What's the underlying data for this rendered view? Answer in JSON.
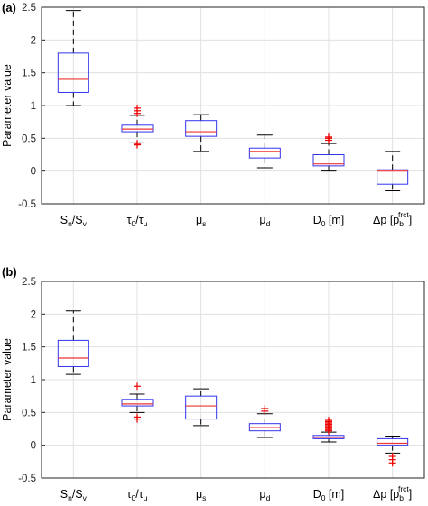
{
  "colors": {
    "box": "#3333ee",
    "median": "#ee3333",
    "whisker": "#000000",
    "outlier": "#ee0000",
    "grid": "#e0e0e0",
    "axis": "#262626"
  },
  "chart_data": [
    {
      "type": "boxplot",
      "panel_label": "(a)",
      "ylabel": "Parameter value",
      "ylim": [
        -0.5,
        2.5
      ],
      "yticks": [
        "-0.5",
        "0",
        "0.5",
        "1",
        "1.5",
        "2",
        "2.5"
      ],
      "grid": true,
      "categories": [
        {
          "main": "S",
          "sub": "n",
          "main2": "/S",
          "sub2": "v",
          "rest": ""
        },
        {
          "main": "τ",
          "sub": "0",
          "main2": "/τ",
          "sub2": "u",
          "rest": ""
        },
        {
          "main": "μ",
          "sub": "s",
          "main2": "",
          "sub2": "",
          "rest": ""
        },
        {
          "main": "μ",
          "sub": "d",
          "main2": "",
          "sub2": "",
          "rest": ""
        },
        {
          "main": "D",
          "sub": "0",
          "main2": "",
          "sub2": "",
          "rest": " [m]"
        },
        {
          "main": "Δp [p",
          "sub": "b",
          "sup": "frct",
          "main2": "]",
          "sub2": "",
          "rest": ""
        }
      ],
      "boxes": [
        {
          "whisker_low": 1.0,
          "q1": 1.2,
          "median": 1.4,
          "q3": 1.8,
          "whisker_high": 2.45,
          "outliers": []
        },
        {
          "whisker_low": 0.43,
          "q1": 0.6,
          "median": 0.64,
          "q3": 0.7,
          "whisker_high": 0.85,
          "outliers": [
            0.4,
            0.42,
            0.88,
            0.92,
            0.96
          ]
        },
        {
          "whisker_low": 0.3,
          "q1": 0.53,
          "median": 0.6,
          "q3": 0.77,
          "whisker_high": 0.86,
          "outliers": []
        },
        {
          "whisker_low": 0.05,
          "q1": 0.2,
          "median": 0.3,
          "q3": 0.35,
          "whisker_high": 0.55,
          "outliers": []
        },
        {
          "whisker_low": 0.0,
          "q1": 0.08,
          "median": 0.11,
          "q3": 0.25,
          "whisker_high": 0.42,
          "outliers": [
            0.47,
            0.5,
            0.52
          ]
        },
        {
          "whisker_low": -0.3,
          "q1": -0.2,
          "median": 0.0,
          "q3": 0.02,
          "whisker_high": 0.3,
          "outliers": []
        }
      ]
    },
    {
      "type": "boxplot",
      "panel_label": "(b)",
      "ylabel": "Parameter value",
      "ylim": [
        -0.5,
        2.5
      ],
      "yticks": [
        "-0.5",
        "0",
        "0.5",
        "1",
        "1.5",
        "2",
        "2.5"
      ],
      "grid": true,
      "categories": [
        {
          "main": "S",
          "sub": "n",
          "main2": "/S",
          "sub2": "v",
          "rest": ""
        },
        {
          "main": "τ",
          "sub": "0",
          "main2": "/τ",
          "sub2": "u",
          "rest": ""
        },
        {
          "main": "μ",
          "sub": "s",
          "main2": "",
          "sub2": "",
          "rest": ""
        },
        {
          "main": "μ",
          "sub": "d",
          "main2": "",
          "sub2": "",
          "rest": ""
        },
        {
          "main": "D",
          "sub": "0",
          "main2": "",
          "sub2": "",
          "rest": " [m]"
        },
        {
          "main": "Δp [p",
          "sub": "b",
          "sup": "frct",
          "main2": "]",
          "sub2": "",
          "rest": ""
        }
      ],
      "boxes": [
        {
          "whisker_low": 1.08,
          "q1": 1.2,
          "median": 1.33,
          "q3": 1.6,
          "whisker_high": 2.05,
          "outliers": []
        },
        {
          "whisker_low": 0.5,
          "q1": 0.6,
          "median": 0.63,
          "q3": 0.7,
          "whisker_high": 0.78,
          "outliers": [
            0.4,
            0.43,
            0.9
          ]
        },
        {
          "whisker_low": 0.3,
          "q1": 0.4,
          "median": 0.6,
          "q3": 0.75,
          "whisker_high": 0.86,
          "outliers": []
        },
        {
          "whisker_low": 0.12,
          "q1": 0.22,
          "median": 0.27,
          "q3": 0.33,
          "whisker_high": 0.48,
          "outliers": [
            0.52,
            0.56
          ]
        },
        {
          "whisker_low": 0.05,
          "q1": 0.1,
          "median": 0.12,
          "q3": 0.15,
          "whisker_high": 0.2,
          "outliers": [
            0.22,
            0.24,
            0.26,
            0.28,
            0.3,
            0.32,
            0.34,
            0.36,
            0.38
          ]
        },
        {
          "whisker_low": -0.12,
          "q1": 0.0,
          "median": 0.03,
          "q3": 0.1,
          "whisker_high": 0.14,
          "outliers": [
            -0.17,
            -0.22,
            -0.27
          ]
        }
      ]
    }
  ]
}
